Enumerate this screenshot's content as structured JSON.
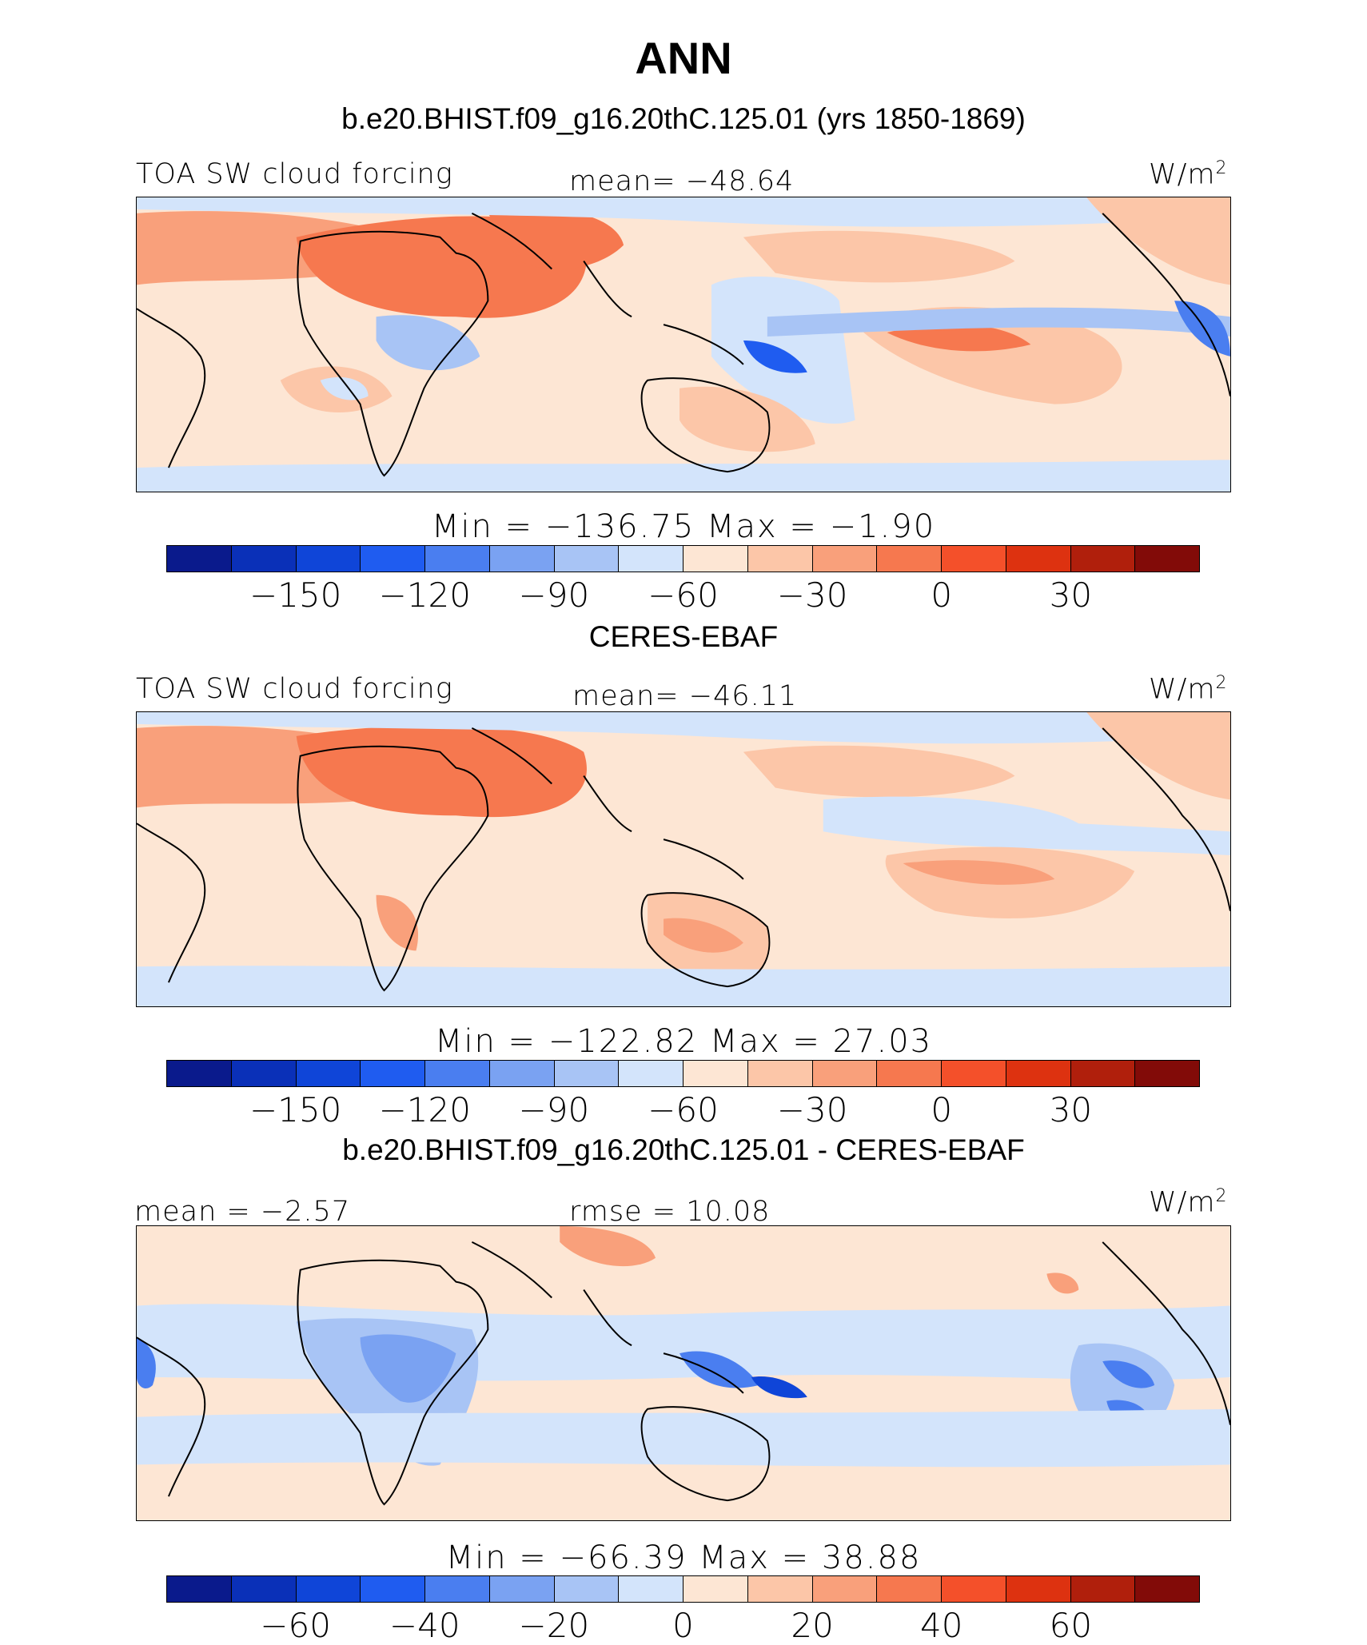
{
  "title": "ANN",
  "panels": [
    {
      "heading": "b.e20.BHIST.f09_g16.20thC.125.01 (yrs 1850-1869)",
      "left_label": "TOA SW cloud forcing",
      "center_label": "mean=  −48.64",
      "unit": "W/m",
      "unit_sup": "2",
      "min_max": "Min  =  −136.75  Max  =   −1.90",
      "colorbar": {
        "colors": [
          "#0a1a8c",
          "#0a30b8",
          "#0f45d8",
          "#1f5cf0",
          "#4a7ef0",
          "#7aa2f2",
          "#a8c4f5",
          "#d3e4fb",
          "#fde6d4",
          "#fcc6a8",
          "#f9a07b",
          "#f6784f",
          "#f4502a",
          "#dd3210",
          "#b01f0c",
          "#820b08"
        ],
        "ticks": [
          "−150",
          "−120",
          "−90",
          "−60",
          "−30",
          "0",
          "30"
        ]
      }
    },
    {
      "heading": "CERES-EBAF",
      "left_label": "TOA SW cloud forcing",
      "center_label": "mean=  −46.11",
      "unit": "W/m",
      "unit_sup": "2",
      "min_max": "Min  =  −122.82  Max  =   27.03",
      "colorbar": {
        "colors": [
          "#0a1a8c",
          "#0a30b8",
          "#0f45d8",
          "#1f5cf0",
          "#4a7ef0",
          "#7aa2f2",
          "#a8c4f5",
          "#d3e4fb",
          "#fde6d4",
          "#fcc6a8",
          "#f9a07b",
          "#f6784f",
          "#f4502a",
          "#dd3210",
          "#b01f0c",
          "#820b08"
        ],
        "ticks": [
          "−150",
          "−120",
          "−90",
          "−60",
          "−30",
          "0",
          "30"
        ]
      }
    },
    {
      "heading": "b.e20.BHIST.f09_g16.20thC.125.01 - CERES-EBAF",
      "left_label": "mean  =   −2.57",
      "center_label": "rmse  =    10.08",
      "unit": "W/m",
      "unit_sup": "2",
      "min_max": "Min  =  −66.39  Max  =   38.88",
      "colorbar": {
        "colors": [
          "#0a1a8c",
          "#0a30b8",
          "#0f45d8",
          "#1f5cf0",
          "#4a7ef0",
          "#7aa2f2",
          "#a8c4f5",
          "#d3e4fb",
          "#fde6d4",
          "#fcc6a8",
          "#f9a07b",
          "#f6784f",
          "#f4502a",
          "#dd3210",
          "#b01f0c",
          "#820b08"
        ],
        "ticks": [
          "−60",
          "−40",
          "−20",
          "0",
          "20",
          "40",
          "60"
        ]
      }
    }
  ]
}
